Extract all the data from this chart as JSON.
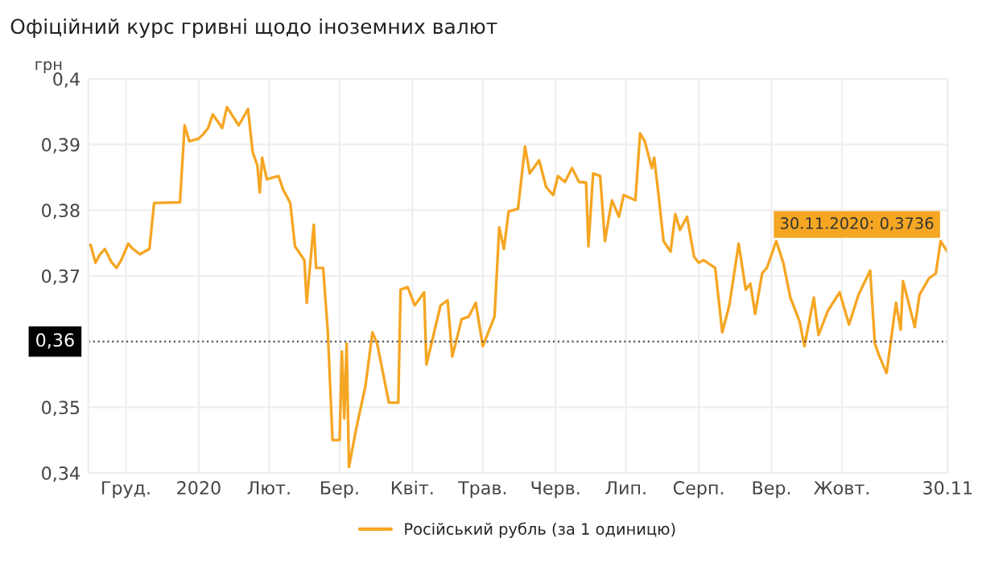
{
  "chart_data": {
    "type": "line",
    "title": "Офіційний курс гривні щодо іноземних валют",
    "ylabel": "грн",
    "x": [
      "2019-11-30",
      "2019-12-01",
      "2019-12-03",
      "2019-12-05",
      "2019-12-07",
      "2019-12-10",
      "2019-12-12",
      "2019-12-14",
      "2019-12-17",
      "2019-12-19",
      "2019-12-22",
      "2019-12-26",
      "2019-12-28",
      "2020-01-08",
      "2020-01-10",
      "2020-01-12",
      "2020-01-16",
      "2020-01-18",
      "2020-01-20",
      "2020-01-22",
      "2020-01-26",
      "2020-01-28",
      "2020-01-30",
      "2020-02-02",
      "2020-02-06",
      "2020-02-08",
      "2020-02-10",
      "2020-02-11",
      "2020-02-12",
      "2020-02-14",
      "2020-02-19",
      "2020-02-21",
      "2020-02-24",
      "2020-02-26",
      "2020-03-01",
      "2020-03-02",
      "2020-03-05",
      "2020-03-06",
      "2020-03-09",
      "2020-03-11",
      "2020-03-12",
      "2020-03-13",
      "2020-03-16",
      "2020-03-17",
      "2020-03-18",
      "2020-03-19",
      "2020-03-20",
      "2020-03-23",
      "2020-03-27",
      "2020-03-30",
      "2020-04-01",
      "2020-04-06",
      "2020-04-10",
      "2020-04-11",
      "2020-04-14",
      "2020-04-17",
      "2020-04-21",
      "2020-04-22",
      "2020-04-25",
      "2020-04-28",
      "2020-05-01",
      "2020-05-03",
      "2020-05-07",
      "2020-05-10",
      "2020-05-13",
      "2020-05-16",
      "2020-05-21",
      "2020-05-23",
      "2020-05-25",
      "2020-05-27",
      "2020-05-31",
      "2020-06-03",
      "2020-06-05",
      "2020-06-09",
      "2020-06-12",
      "2020-06-15",
      "2020-06-17",
      "2020-06-20",
      "2020-06-23",
      "2020-06-26",
      "2020-06-29",
      "2020-06-30",
      "2020-07-02",
      "2020-07-05",
      "2020-07-07",
      "2020-07-10",
      "2020-07-13",
      "2020-07-15",
      "2020-07-20",
      "2020-07-22",
      "2020-07-24",
      "2020-07-27",
      "2020-07-28",
      "2020-07-30",
      "2020-08-01",
      "2020-08-04",
      "2020-08-06",
      "2020-08-08",
      "2020-08-11",
      "2020-08-14",
      "2020-08-16",
      "2020-08-18",
      "2020-08-23",
      "2020-08-26",
      "2020-08-29",
      "2020-09-02",
      "2020-09-05",
      "2020-09-07",
      "2020-09-09",
      "2020-09-12",
      "2020-09-14",
      "2020-09-18",
      "2020-09-21",
      "2020-09-24",
      "2020-09-28",
      "2020-09-30",
      "2020-10-04",
      "2020-10-06",
      "2020-10-10",
      "2020-10-15",
      "2020-10-19",
      "2020-10-23",
      "2020-10-28",
      "2020-10-30",
      "2020-11-01",
      "2020-11-04",
      "2020-11-08",
      "2020-11-10",
      "2020-11-11",
      "2020-11-16",
      "2020-11-18",
      "2020-11-22",
      "2020-11-25",
      "2020-11-27",
      "2020-11-30"
    ],
    "series": [
      {
        "name": "Російський рубль (за 1 одиницю)",
        "color": "#f5a623",
        "values": [
          0.3747,
          0.3747,
          0.372,
          0.3733,
          0.3741,
          0.372,
          0.3712,
          0.3724,
          0.3749,
          0.3741,
          0.3733,
          0.3741,
          0.3811,
          0.3812,
          0.3929,
          0.3905,
          0.3909,
          0.3916,
          0.3925,
          0.3946,
          0.3925,
          0.3957,
          0.3946,
          0.3929,
          0.3954,
          0.3888,
          0.3868,
          0.3827,
          0.388,
          0.3847,
          0.3852,
          0.3831,
          0.3811,
          0.3745,
          0.3724,
          0.3659,
          0.3778,
          0.3712,
          0.3712,
          0.3614,
          0.3532,
          0.345,
          0.345,
          0.3585,
          0.3483,
          0.3597,
          0.3409,
          0.3466,
          0.3532,
          0.3614,
          0.3597,
          0.3507,
          0.3507,
          0.3679,
          0.3683,
          0.3655,
          0.3675,
          0.3565,
          0.361,
          0.3655,
          0.3663,
          0.3577,
          0.3634,
          0.3638,
          0.3659,
          0.3593,
          0.3638,
          0.3774,
          0.3741,
          0.3798,
          0.3802,
          0.3897,
          0.3856,
          0.3876,
          0.3835,
          0.3823,
          0.3852,
          0.3843,
          0.3864,
          0.3843,
          0.3842,
          0.3745,
          0.3856,
          0.3852,
          0.3753,
          0.3815,
          0.379,
          0.3823,
          0.3815,
          0.3917,
          0.3905,
          0.3864,
          0.388,
          0.3819,
          0.3753,
          0.3737,
          0.3794,
          0.377,
          0.379,
          0.3729,
          0.372,
          0.3724,
          0.3712,
          0.3614,
          0.3655,
          0.3749,
          0.3679,
          0.3688,
          0.3642,
          0.3704,
          0.3712,
          0.3753,
          0.372,
          0.3667,
          0.363,
          0.3593,
          0.3667,
          0.361,
          0.3647,
          0.3675,
          0.3626,
          0.3671,
          0.3708,
          0.3597,
          0.3577,
          0.3552,
          0.3659,
          0.3618,
          0.3692,
          0.3622,
          0.3671,
          0.3696,
          0.3704,
          0.3753,
          0.3736
        ]
      }
    ],
    "xlim": [
      "2019-11-30",
      "2020-11-30"
    ],
    "xticks": [
      {
        "value": "2019-12-16",
        "label": "Груд."
      },
      {
        "value": "2020-01-16",
        "label": "2020"
      },
      {
        "value": "2020-02-15",
        "label": "Лют."
      },
      {
        "value": "2020-03-16",
        "label": "Бер."
      },
      {
        "value": "2020-04-16",
        "label": "Квіт."
      },
      {
        "value": "2020-05-16",
        "label": "Трав."
      },
      {
        "value": "2020-06-16",
        "label": "Черв."
      },
      {
        "value": "2020-07-16",
        "label": "Лип."
      },
      {
        "value": "2020-08-16",
        "label": "Серп."
      },
      {
        "value": "2020-09-16",
        "label": "Вер."
      },
      {
        "value": "2020-10-16",
        "label": "Жовт."
      },
      {
        "value": "2020-11-30",
        "label": "30.11"
      }
    ],
    "ylim": [
      0.34,
      0.4
    ],
    "yticks": [
      {
        "value": 0.34,
        "label": "0,34"
      },
      {
        "value": 0.35,
        "label": "0,35"
      },
      {
        "value": 0.37,
        "label": "0,37"
      },
      {
        "value": 0.38,
        "label": "0,38"
      },
      {
        "value": 0.39,
        "label": "0,39"
      },
      {
        "value": 0.4,
        "label": "0,4"
      }
    ],
    "ref_lines": [
      {
        "axis": "y",
        "value": 0.36,
        "label": "0,36",
        "color": "#555555",
        "line_style": "dotted"
      }
    ],
    "annotations": [
      {
        "text": "30.11.2020: 0,3736",
        "x": "2020-11-30",
        "y": 0.3736
      }
    ],
    "grid": true,
    "legend": "bottom",
    "marker": "none",
    "line_style": "solid"
  }
}
